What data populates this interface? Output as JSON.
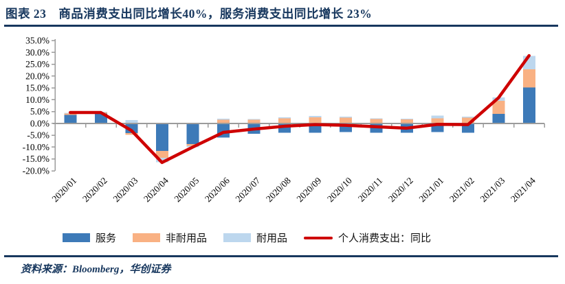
{
  "header": {
    "title": "图表 23　商品消费支出同比增长40%，服务消费支出同比增长 23%"
  },
  "footer": {
    "source": "资料来源：Bloomberg，华创证券"
  },
  "colors": {
    "navy_accent": "#17375E",
    "axis_gray": "#9B9B9B",
    "services_blue": "#3D7AB8",
    "nondurables_orange": "#F9B183",
    "durables_lightblue": "#BDD7EE",
    "line_red": "#CE0000"
  },
  "chart_data": {
    "type": "bar",
    "subtype": "stacked-bar-with-line-overlay",
    "title": "",
    "xlabel": "",
    "ylabel": "",
    "categories": [
      "2020/01",
      "2020/02",
      "2020/03",
      "2020/04",
      "2020/05",
      "2020/06",
      "2020/07",
      "2020/08",
      "2020/09",
      "2020/10",
      "2020/11",
      "2020/12",
      "2021/01",
      "2021/02",
      "2021/03",
      "2021/04"
    ],
    "series": [
      {
        "name": "服务",
        "slug": "services",
        "type": "bar",
        "color": "#3D7AB8",
        "values": [
          3.6,
          4.2,
          -4.1,
          -11.6,
          -8.7,
          -5.9,
          -4.3,
          -3.9,
          -3.9,
          -3.7,
          -3.9,
          -3.9,
          -3.7,
          -3.9,
          4.0,
          15.2
        ]
      },
      {
        "name": "非耐用品",
        "slug": "nondurables",
        "type": "bar",
        "color": "#F9B183",
        "values": [
          0.5,
          0.4,
          -0.7,
          -2.9,
          -0.8,
          1.6,
          1.6,
          2.2,
          2.6,
          2.4,
          1.9,
          1.7,
          2.2,
          2.4,
          5.5,
          7.7
        ]
      },
      {
        "name": "耐用品",
        "slug": "durables",
        "type": "bar",
        "color": "#BDD7EE",
        "values": [
          0.4,
          0.3,
          1.4,
          -1.9,
          -0.5,
          0.4,
          0.3,
          0.4,
          0.5,
          0.4,
          0.3,
          0.3,
          1.1,
          0.4,
          1.5,
          5.6
        ]
      },
      {
        "name": "个人消费支出：同比",
        "slug": "pce-yoy",
        "type": "line",
        "color": "#CE0000",
        "values": [
          4.6,
          4.6,
          -3.0,
          -16.5,
          -10.0,
          -3.8,
          -2.4,
          -1.2,
          -0.5,
          -0.8,
          -1.4,
          -2.0,
          -0.4,
          -0.5,
          10.8,
          28.6
        ]
      }
    ],
    "stacked": true,
    "ylim": [
      -20,
      35
    ],
    "ytick_step": 5,
    "ytick_format": "0.0%",
    "grid": false,
    "legend_position": "bottom"
  }
}
